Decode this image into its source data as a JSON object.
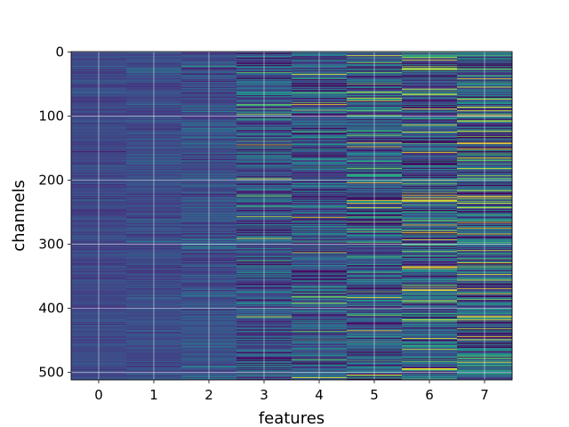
{
  "chart_data": {
    "type": "heatmap",
    "title": "",
    "xlabel": "features",
    "ylabel": "channels",
    "x_ticks": [
      "0",
      "1",
      "2",
      "3",
      "4",
      "5",
      "6",
      "7"
    ],
    "y_ticks": [
      "0",
      "100",
      "200",
      "300",
      "400",
      "500"
    ],
    "y_tick_values": [
      0,
      100,
      200,
      300,
      400,
      500
    ],
    "n_features": 8,
    "n_channels": 512,
    "xlim": [
      -0.5,
      7.5
    ],
    "ylim": [
      511.5,
      -0.5
    ],
    "y_inverted": true,
    "colormap": "viridis",
    "grid": true,
    "feature_variability": [
      0.1,
      0.12,
      0.16,
      0.3,
      0.36,
      0.42,
      0.44,
      0.48
    ],
    "highlighted_rows": [
      {
        "feature": 2,
        "channel": 143,
        "level": 0.55
      },
      {
        "feature": 3,
        "channel": 145,
        "level": 0.95
      },
      {
        "feature": 4,
        "channel": 313,
        "level": 0.95
      },
      {
        "feature": 4,
        "channel": 508,
        "level": 1.0
      },
      {
        "feature": 5,
        "channel": 130,
        "level": 0.9
      },
      {
        "feature": 5,
        "channel": 376,
        "level": 0.0
      },
      {
        "feature": 6,
        "channel": 58,
        "level": 1.0
      },
      {
        "feature": 6,
        "channel": 232,
        "level": 0.95
      },
      {
        "feature": 6,
        "channel": 450,
        "level": 0.0
      },
      {
        "feature": 7,
        "channel": 143,
        "level": 1.0
      },
      {
        "feature": 7,
        "channel": 263,
        "level": 0.8
      }
    ]
  }
}
